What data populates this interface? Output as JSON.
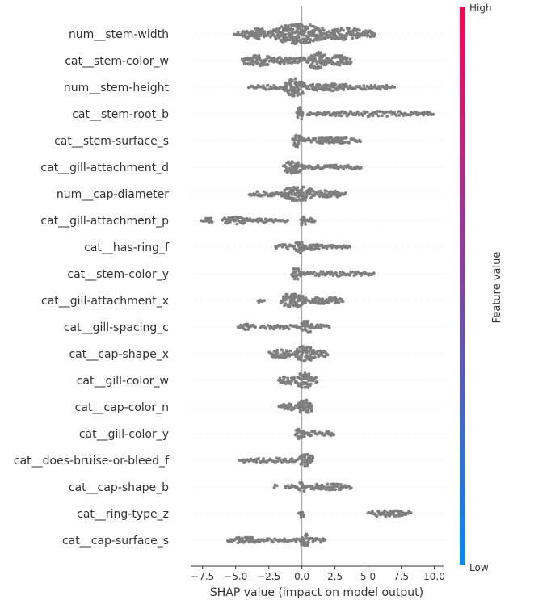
{
  "chart_data": {
    "type": "scatter",
    "subtype": "shap-beeswarm",
    "title": "",
    "xlabel": "SHAP value (impact on model output)",
    "ylabel": "",
    "xlim": [
      -8.4,
      10.7
    ],
    "xticks": [
      -7.5,
      -5.0,
      -2.5,
      0.0,
      2.5,
      5.0,
      7.5,
      10.0
    ],
    "xtick_labels": [
      "−7.5",
      "−5.0",
      "−2.5",
      "0.0",
      "2.5",
      "5.0",
      "7.5",
      "10.0"
    ],
    "zero_line": 0,
    "grid": false,
    "point_color": "#7f7f7f",
    "features": [
      {
        "name": "num__stem-width",
        "segments": [
          [
            -5.1,
            -4.6,
            0.15
          ],
          [
            -4.6,
            -2.2,
            0.45
          ],
          [
            -2.2,
            1.8,
            1.0
          ],
          [
            1.8,
            4.6,
            0.55
          ],
          [
            4.6,
            5.6,
            0.25
          ]
        ]
      },
      {
        "name": "cat__stem-color_w",
        "segments": [
          [
            -4.5,
            -2.0,
            0.45
          ],
          [
            -2.0,
            -0.6,
            0.3
          ],
          [
            -0.6,
            0.4,
            0.2
          ],
          [
            0.4,
            1.9,
            0.85
          ],
          [
            1.9,
            3.7,
            0.45
          ]
        ]
      },
      {
        "name": "num__stem-height",
        "segments": [
          [
            -4.0,
            -1.4,
            0.12
          ],
          [
            -1.4,
            0.3,
            0.85
          ],
          [
            0.3,
            3.8,
            0.3
          ],
          [
            3.8,
            7.0,
            0.15
          ]
        ]
      },
      {
        "name": "cat__stem-root_b",
        "segments": [
          [
            -0.4,
            0.1,
            0.6
          ],
          [
            0.4,
            10.0,
            0.15
          ]
        ]
      },
      {
        "name": "cat__stem-surface_s",
        "segments": [
          [
            -0.7,
            0.0,
            0.6
          ],
          [
            0.0,
            4.5,
            0.2
          ]
        ]
      },
      {
        "name": "cat__gill-attachment_d",
        "segments": [
          [
            -1.4,
            0.0,
            0.6
          ],
          [
            0.0,
            4.5,
            0.15
          ]
        ]
      },
      {
        "name": "num__cap-diameter",
        "segments": [
          [
            -4.0,
            -1.5,
            0.15
          ],
          [
            -1.5,
            0.9,
            0.7
          ],
          [
            0.9,
            3.3,
            0.25
          ]
        ]
      },
      {
        "name": "cat__gill-attachment_p",
        "segments": [
          [
            -7.6,
            -6.7,
            0.2
          ],
          [
            -6.0,
            -3.9,
            0.3
          ],
          [
            -3.9,
            -1.0,
            0.12
          ],
          [
            -0.1,
            0.3,
            0.55
          ],
          [
            0.3,
            1.0,
            0.1
          ]
        ]
      },
      {
        "name": "cat__has-ring_f",
        "segments": [
          [
            -2.0,
            -0.5,
            0.15
          ],
          [
            -0.5,
            0.2,
            0.6
          ],
          [
            0.2,
            1.8,
            0.2
          ],
          [
            1.8,
            3.6,
            0.15
          ]
        ]
      },
      {
        "name": "cat__stem-color_y",
        "segments": [
          [
            -0.8,
            -0.1,
            0.55
          ],
          [
            -0.1,
            5.5,
            0.15
          ]
        ]
      },
      {
        "name": "cat__gill-attachment_x",
        "segments": [
          [
            -3.3,
            -2.8,
            0.15
          ],
          [
            -1.6,
            0.3,
            0.65
          ],
          [
            0.3,
            3.2,
            0.25
          ]
        ]
      },
      {
        "name": "cat__gill-spacing_c",
        "segments": [
          [
            -4.8,
            -3.5,
            0.2
          ],
          [
            -3.1,
            -0.1,
            0.12
          ],
          [
            -0.1,
            0.8,
            0.6
          ],
          [
            0.8,
            2.1,
            0.15
          ]
        ]
      },
      {
        "name": "cat__cap-shape_x",
        "segments": [
          [
            -2.5,
            -0.6,
            0.3
          ],
          [
            -0.6,
            1.1,
            0.7
          ],
          [
            1.1,
            2.0,
            0.25
          ]
        ]
      },
      {
        "name": "cat__gill-color_w",
        "segments": [
          [
            -1.8,
            -0.4,
            0.3
          ],
          [
            -0.4,
            0.8,
            0.75
          ],
          [
            0.8,
            1.2,
            0.2
          ]
        ]
      },
      {
        "name": "cat__cap-color_n",
        "segments": [
          [
            -1.7,
            -0.3,
            0.25
          ],
          [
            -0.3,
            0.8,
            0.7
          ]
        ]
      },
      {
        "name": "cat__gill-color_y",
        "segments": [
          [
            -0.5,
            0.2,
            0.5
          ],
          [
            0.2,
            2.5,
            0.15
          ]
        ]
      },
      {
        "name": "cat__does-bruise-or-bleed_f",
        "segments": [
          [
            -4.7,
            -4.2,
            0.1
          ],
          [
            -4.2,
            -0.3,
            0.12
          ],
          [
            -0.2,
            0.9,
            0.6
          ]
        ]
      },
      {
        "name": "cat__cap-shape_b",
        "segments": [
          [
            -2.1,
            -1.9,
            0.1
          ],
          [
            -1.3,
            -0.3,
            0.12
          ],
          [
            -0.3,
            0.3,
            0.4
          ],
          [
            0.3,
            3.8,
            0.22
          ]
        ]
      },
      {
        "name": "cat__ring-type_z",
        "segments": [
          [
            -0.2,
            0.2,
            0.45
          ],
          [
            5.0,
            8.3,
            0.22
          ]
        ]
      },
      {
        "name": "cat__cap-surface_s",
        "segments": [
          [
            -5.6,
            -3.0,
            0.2
          ],
          [
            -3.0,
            -0.1,
            0.12
          ],
          [
            -0.1,
            0.5,
            0.65
          ],
          [
            0.5,
            1.8,
            0.15
          ]
        ]
      }
    ],
    "colorbar": {
      "label": "Feature value",
      "high_label": "High",
      "low_label": "Low",
      "colors": [
        "#008afb",
        "#ff0052"
      ]
    }
  }
}
